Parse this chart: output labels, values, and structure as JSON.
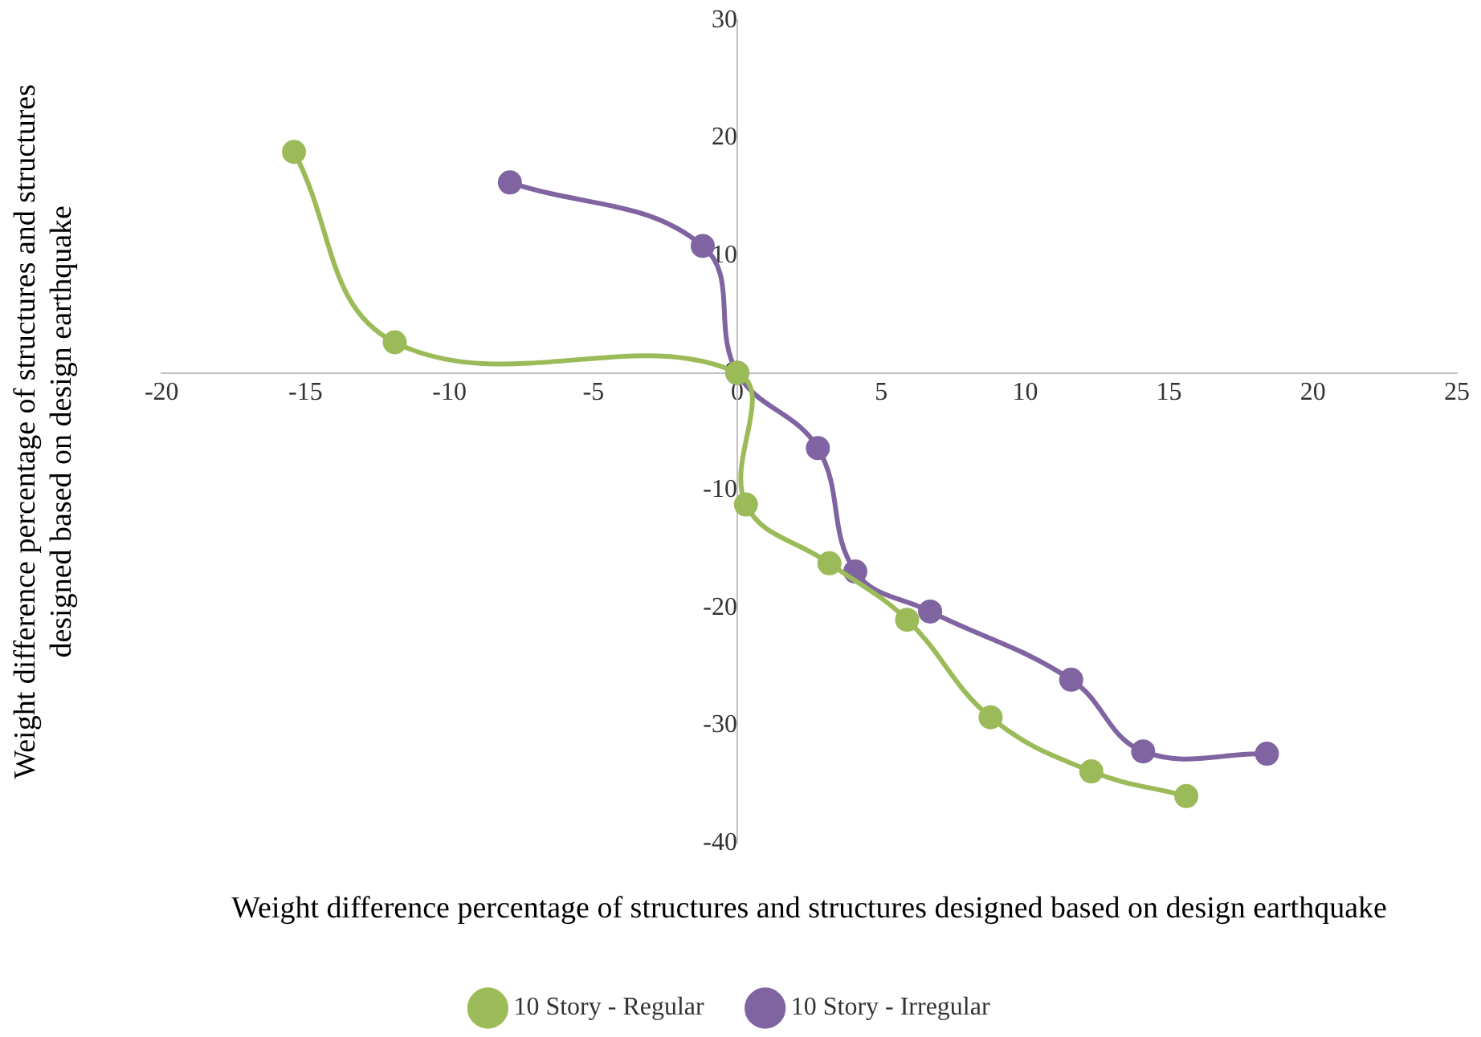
{
  "chart_data": {
    "type": "line",
    "xlabel": "Weight difference percentage of structures and structures designed based on design earthquake",
    "ylabel": "Weight difference percentage of structures and structures designed based on design earthquake",
    "xlim": [
      -20,
      25
    ],
    "xticks": [
      -20,
      -15,
      -10,
      -5,
      0,
      5,
      10,
      15,
      20,
      25
    ],
    "ylim": [
      -40,
      30
    ],
    "yticks": [
      -40,
      -30,
      -20,
      -10,
      0,
      10,
      20,
      30
    ],
    "grid": false,
    "legend": "bottom",
    "marker": "circle",
    "line_style": "solid",
    "series": [
      {
        "name": "10 Story - Regular",
        "color": "#9bbb59",
        "x": [
          -15.4,
          -11.9,
          0,
          0.3,
          3.2,
          5.9,
          8.8,
          12.3,
          15.6
        ],
        "values": [
          18.8,
          2.6,
          0,
          -11.2,
          -16.2,
          -21,
          -29.3,
          -33.9,
          -36
        ]
      },
      {
        "name": "10 Story - Irregular",
        "color": "#8064a2",
        "x": [
          -7.9,
          -1.2,
          0,
          2.8,
          4.1,
          6.7,
          11.6,
          14.1,
          18.4
        ],
        "values": [
          16.2,
          10.8,
          0,
          -6.4,
          -16.9,
          -20.3,
          -26.1,
          -32.2,
          -32.4
        ]
      }
    ]
  }
}
